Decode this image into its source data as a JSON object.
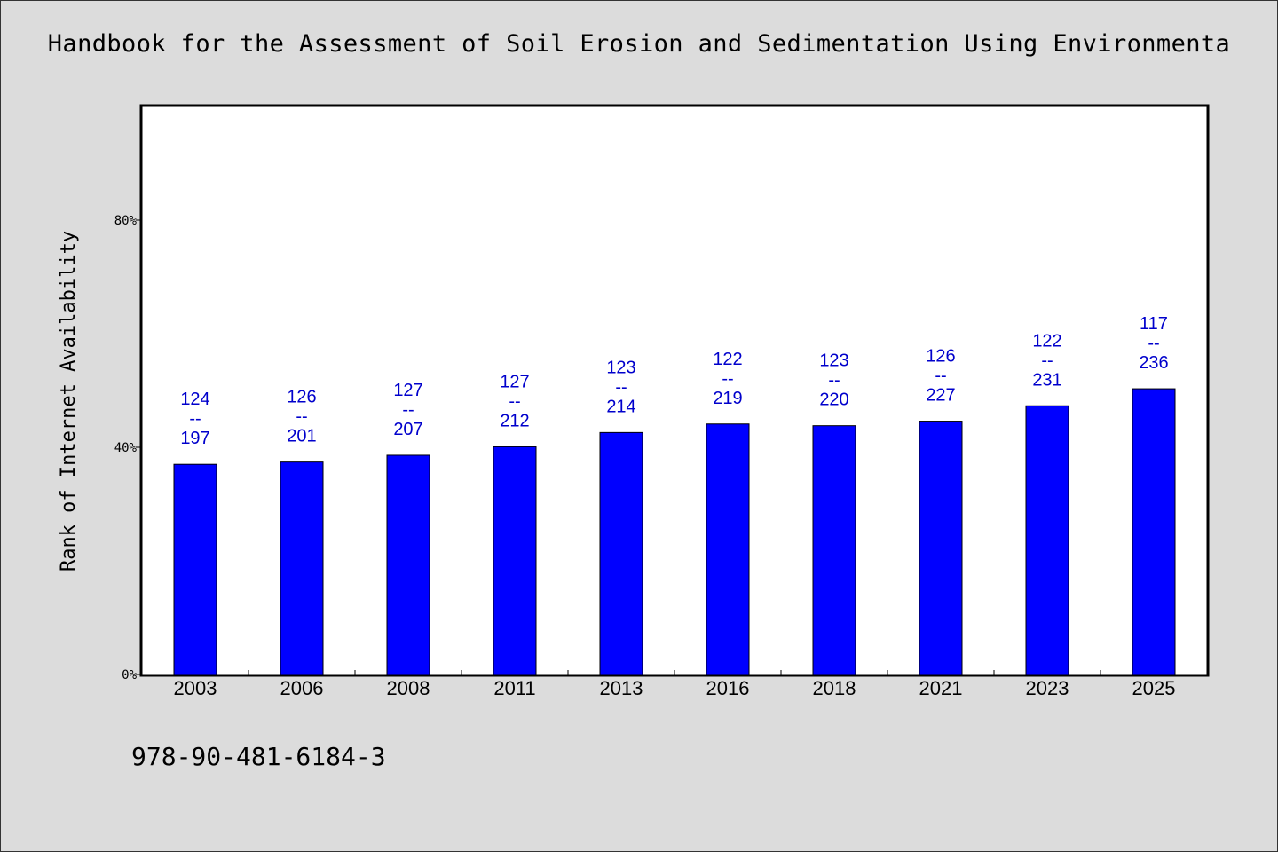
{
  "title": "Handbook for the Assessment of Soil Erosion and Sedimentation Using Environmenta",
  "footer": "978-90-481-6184-3",
  "colors": {
    "bar": "#0000ff",
    "label": "#0000cc",
    "background": "#dcdcdc",
    "plot_bg": "#ffffff"
  },
  "chart_data": {
    "type": "bar",
    "ylabel": "Rank of Internet Availability",
    "xlabel": "",
    "ylim": [
      0,
      100
    ],
    "yticks": [
      0,
      40,
      80
    ],
    "ytick_labels": [
      "0%",
      "40%",
      "80%"
    ],
    "grid": false,
    "categories": [
      "2003",
      "2006",
      "2008",
      "2011",
      "2013",
      "2016",
      "2018",
      "2021",
      "2023",
      "2025"
    ],
    "values": [
      37,
      37.4,
      38.6,
      40.1,
      42.6,
      44.1,
      43.8,
      44.6,
      47.3,
      50.3
    ],
    "data_labels": [
      [
        "124",
        "--",
        "197"
      ],
      [
        "126",
        "--",
        "201"
      ],
      [
        "127",
        "--",
        "207"
      ],
      [
        "127",
        "--",
        "212"
      ],
      [
        "123",
        "--",
        "214"
      ],
      [
        "122",
        "--",
        "219"
      ],
      [
        "123",
        "--",
        "220"
      ],
      [
        "126",
        "--",
        "227"
      ],
      [
        "122",
        "--",
        "231"
      ],
      [
        "117",
        "--",
        "236"
      ]
    ]
  }
}
